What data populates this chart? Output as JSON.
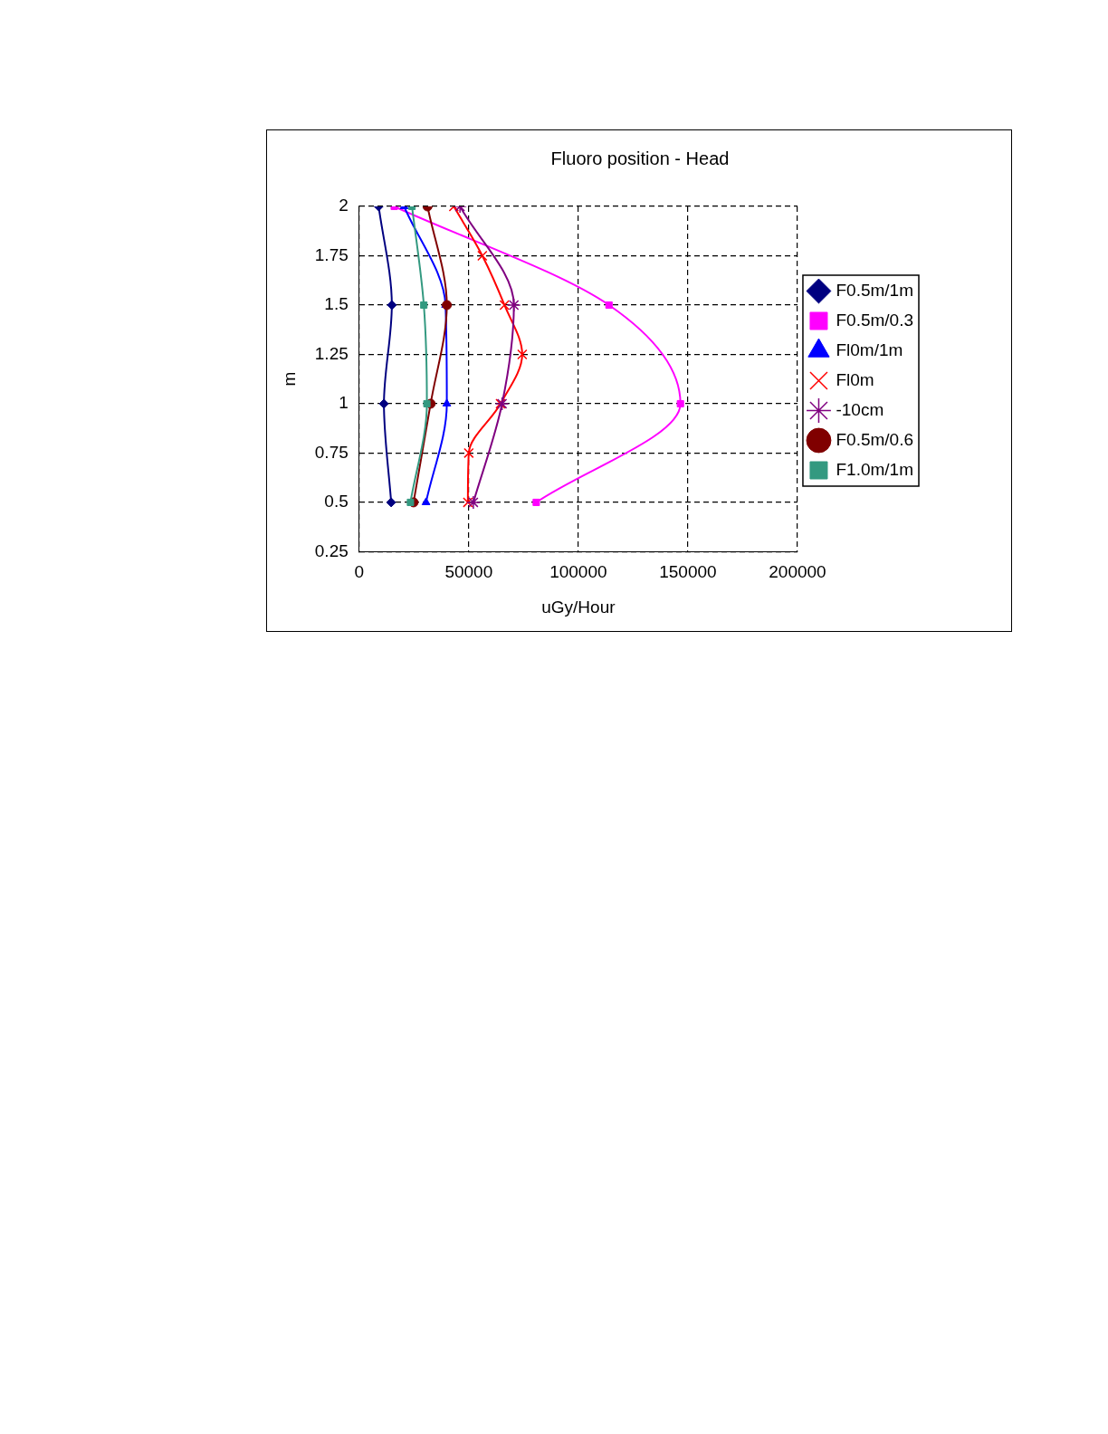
{
  "chart_data": {
    "type": "line",
    "title": "Fluoro position - Head",
    "xlabel": "uGy/Hour",
    "ylabel": "m",
    "xlim": [
      0,
      200000
    ],
    "xticks": [
      0,
      50000,
      100000,
      150000,
      200000
    ],
    "ylim": [
      0.25,
      2
    ],
    "yticks": [
      0.25,
      0.5,
      0.75,
      1,
      1.25,
      1.5,
      1.75,
      2
    ],
    "grid": true,
    "legend": "right",
    "series": [
      {
        "name": "F0.5m/1m",
        "color": "#000080",
        "marker": "diamond",
        "x": [
          8900,
          14900,
          11300,
          14600
        ],
        "values": [
          2,
          1.5,
          1,
          0.5
        ]
      },
      {
        "name": "F0.5m/0.3",
        "color": "#ff00ff",
        "marker": "square",
        "x": [
          16000,
          114000,
          146600,
          80800
        ],
        "values": [
          2,
          1.5,
          1,
          0.5
        ]
      },
      {
        "name": "Fl0m/1m",
        "color": "#0000ff",
        "marker": "triangle",
        "x": [
          20500,
          39400,
          40000,
          30500
        ],
        "values": [
          2,
          1.5,
          1,
          0.5
        ]
      },
      {
        "name": "Fl0m",
        "color": "#ff0000",
        "marker": "cross",
        "x": [
          43200,
          56200,
          66300,
          74400,
          64500,
          50000,
          49600
        ],
        "values": [
          2,
          1.75,
          1.5,
          1.25,
          1,
          0.75,
          0.5
        ]
      },
      {
        "name": "-10cm",
        "color": "#800080",
        "marker": "cross",
        "x": [
          46000,
          70600,
          65200,
          52100
        ],
        "values": [
          2,
          1.5,
          1,
          0.5
        ]
      },
      {
        "name": "F0.5m/0.6",
        "color": "#800000",
        "marker": "circle",
        "x": [
          31200,
          40000,
          32600,
          24800
        ],
        "values": [
          2,
          1.5,
          1,
          0.5
        ]
      },
      {
        "name": "F1.0m/1m",
        "color": "#339980",
        "marker": "square",
        "x": [
          24100,
          29500,
          30900,
          23400
        ],
        "values": [
          2,
          1.5,
          1,
          0.5
        ]
      }
    ]
  }
}
